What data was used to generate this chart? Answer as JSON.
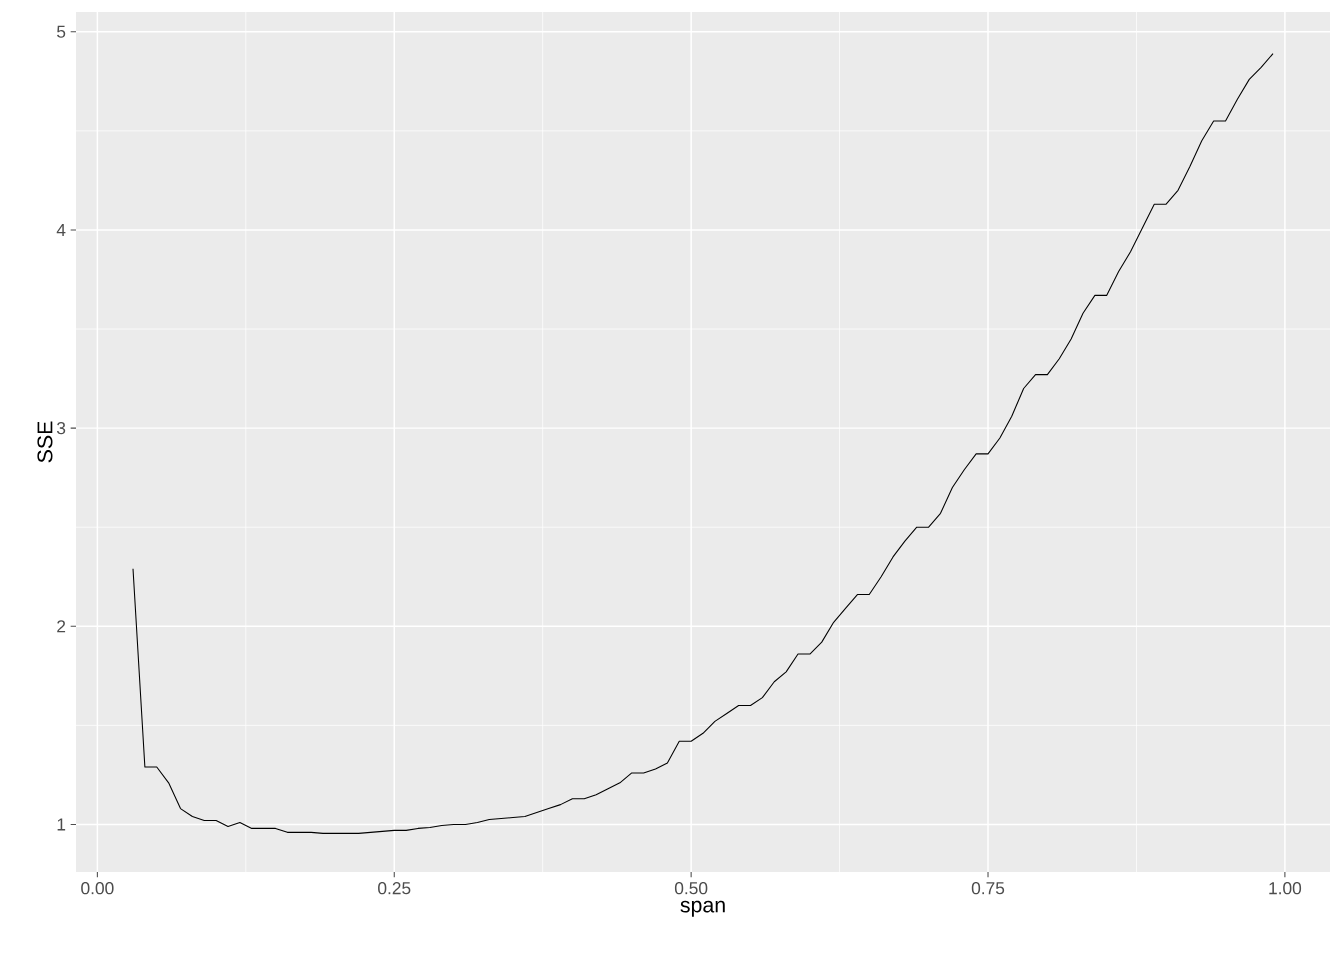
{
  "chart_data": {
    "type": "line",
    "xlabel": "span",
    "ylabel": "SSE",
    "x": [
      0.03,
      0.04,
      0.05,
      0.06,
      0.07,
      0.08,
      0.09,
      0.1,
      0.11,
      0.12,
      0.13,
      0.14,
      0.15,
      0.16,
      0.17,
      0.18,
      0.19,
      0.2,
      0.21,
      0.22,
      0.23,
      0.24,
      0.25,
      0.26,
      0.27,
      0.28,
      0.29,
      0.3,
      0.31,
      0.32,
      0.33,
      0.34,
      0.35,
      0.36,
      0.37,
      0.38,
      0.39,
      0.4,
      0.41,
      0.42,
      0.43,
      0.44,
      0.45,
      0.46,
      0.47,
      0.48,
      0.49,
      0.5,
      0.51,
      0.52,
      0.53,
      0.54,
      0.55,
      0.56,
      0.57,
      0.58,
      0.59,
      0.6,
      0.61,
      0.62,
      0.63,
      0.64,
      0.65,
      0.66,
      0.67,
      0.68,
      0.69,
      0.7,
      0.71,
      0.72,
      0.73,
      0.74,
      0.75,
      0.76,
      0.77,
      0.78,
      0.79,
      0.8,
      0.81,
      0.82,
      0.83,
      0.84,
      0.85,
      0.86,
      0.87,
      0.88,
      0.89,
      0.9,
      0.91,
      0.92,
      0.93,
      0.94,
      0.95,
      0.96,
      0.97,
      0.98,
      0.99
    ],
    "values": [
      2.29,
      1.29,
      1.29,
      1.21,
      1.08,
      1.04,
      1.02,
      1.02,
      0.99,
      1.01,
      0.98,
      0.98,
      0.98,
      0.96,
      0.96,
      0.96,
      0.955,
      0.955,
      0.955,
      0.955,
      0.96,
      0.965,
      0.97,
      0.97,
      0.98,
      0.985,
      0.995,
      1.0,
      1.0,
      1.01,
      1.025,
      1.03,
      1.035,
      1.04,
      1.06,
      1.08,
      1.1,
      1.13,
      1.13,
      1.15,
      1.18,
      1.21,
      1.26,
      1.26,
      1.28,
      1.31,
      1.42,
      1.42,
      1.46,
      1.52,
      1.56,
      1.6,
      1.6,
      1.64,
      1.72,
      1.77,
      1.86,
      1.86,
      1.92,
      2.02,
      2.09,
      2.16,
      2.16,
      2.25,
      2.35,
      2.43,
      2.5,
      2.5,
      2.57,
      2.7,
      2.79,
      2.87,
      2.87,
      2.95,
      3.06,
      3.2,
      3.27,
      3.27,
      3.35,
      3.45,
      3.58,
      3.67,
      3.67,
      3.79,
      3.89,
      4.01,
      4.13,
      4.13,
      4.2,
      4.32,
      4.45,
      4.55,
      4.55,
      4.66,
      4.76,
      4.82,
      4.89
    ],
    "color": "#000000",
    "xlim": [
      -0.018,
      1.038
    ],
    "ylim": [
      0.76,
      5.1
    ],
    "xticks": [
      {
        "value": 0,
        "label": "0.00"
      },
      {
        "value": 0.25,
        "label": "0.25"
      },
      {
        "value": 0.5,
        "label": "0.50"
      },
      {
        "value": 0.75,
        "label": "0.75"
      },
      {
        "value": 1,
        "label": "1.00"
      }
    ],
    "yticks": [
      1,
      2,
      3,
      4,
      5
    ],
    "grid": true
  }
}
